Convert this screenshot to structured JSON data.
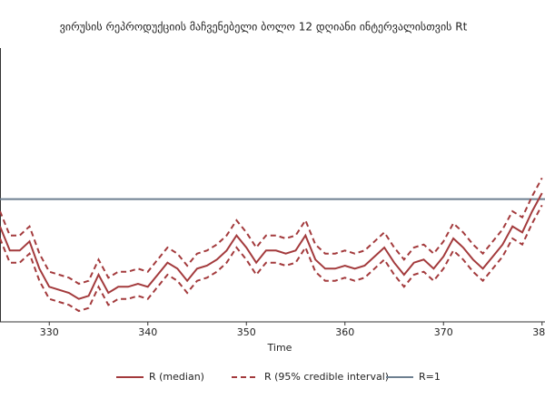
{
  "chart_data": {
    "type": "line",
    "title": "ვირუსის რეპროდუქციის მაჩვენებელი ბოლო 12 დღიანი ინტერვალისთვის Rt",
    "xlabel": "Time",
    "x": [
      325,
      326,
      327,
      328,
      329,
      330,
      331,
      332,
      333,
      334,
      335,
      336,
      337,
      338,
      339,
      340,
      341,
      342,
      343,
      344,
      345,
      346,
      347,
      348,
      349,
      350,
      351,
      352,
      353,
      354,
      355,
      356,
      357,
      358,
      359,
      360,
      361,
      362,
      363,
      364,
      365,
      366,
      367,
      368,
      369,
      370,
      371,
      372,
      373,
      374,
      375,
      376,
      377,
      378,
      379,
      380
    ],
    "xlim": [
      325,
      380.3
    ],
    "xticks": [
      330,
      340,
      350,
      360,
      370,
      380
    ],
    "ylim": [
      0.6,
      1.5
    ],
    "series": [
      {
        "name": "R (median)",
        "color": "#a33a3c",
        "values": [
          0.91,
          0.83,
          0.83,
          0.86,
          0.77,
          0.71,
          0.7,
          0.69,
          0.67,
          0.68,
          0.75,
          0.69,
          0.71,
          0.71,
          0.72,
          0.71,
          0.75,
          0.79,
          0.77,
          0.73,
          0.77,
          0.78,
          0.8,
          0.83,
          0.88,
          0.84,
          0.79,
          0.83,
          0.83,
          0.82,
          0.83,
          0.88,
          0.8,
          0.77,
          0.77,
          0.78,
          0.77,
          0.78,
          0.81,
          0.84,
          0.79,
          0.75,
          0.79,
          0.8,
          0.77,
          0.81,
          0.87,
          0.84,
          0.8,
          0.77,
          0.81,
          0.85,
          0.91,
          0.89,
          0.96,
          1.02
        ]
      },
      {
        "name": "R (95% credible interval)",
        "color": "#a33a3c",
        "dashed": true,
        "upper": [
          0.96,
          0.88,
          0.88,
          0.91,
          0.82,
          0.76,
          0.75,
          0.74,
          0.72,
          0.73,
          0.8,
          0.74,
          0.76,
          0.76,
          0.77,
          0.76,
          0.8,
          0.84,
          0.82,
          0.78,
          0.82,
          0.83,
          0.85,
          0.88,
          0.93,
          0.89,
          0.84,
          0.88,
          0.88,
          0.87,
          0.88,
          0.93,
          0.85,
          0.82,
          0.82,
          0.83,
          0.82,
          0.83,
          0.86,
          0.89,
          0.84,
          0.8,
          0.84,
          0.85,
          0.82,
          0.86,
          0.92,
          0.89,
          0.85,
          0.82,
          0.86,
          0.9,
          0.96,
          0.94,
          1.01,
          1.07
        ],
        "lower": [
          0.87,
          0.79,
          0.79,
          0.82,
          0.73,
          0.67,
          0.66,
          0.65,
          0.63,
          0.64,
          0.71,
          0.65,
          0.67,
          0.67,
          0.68,
          0.67,
          0.71,
          0.75,
          0.73,
          0.69,
          0.73,
          0.74,
          0.76,
          0.79,
          0.84,
          0.8,
          0.75,
          0.79,
          0.79,
          0.78,
          0.79,
          0.84,
          0.76,
          0.73,
          0.73,
          0.74,
          0.73,
          0.74,
          0.77,
          0.8,
          0.75,
          0.71,
          0.75,
          0.76,
          0.73,
          0.77,
          0.83,
          0.8,
          0.76,
          0.73,
          0.77,
          0.81,
          0.87,
          0.85,
          0.92,
          0.98
        ]
      }
    ],
    "reference_line": {
      "name": "R=1",
      "value": 1,
      "color": "#6d7f90"
    }
  }
}
